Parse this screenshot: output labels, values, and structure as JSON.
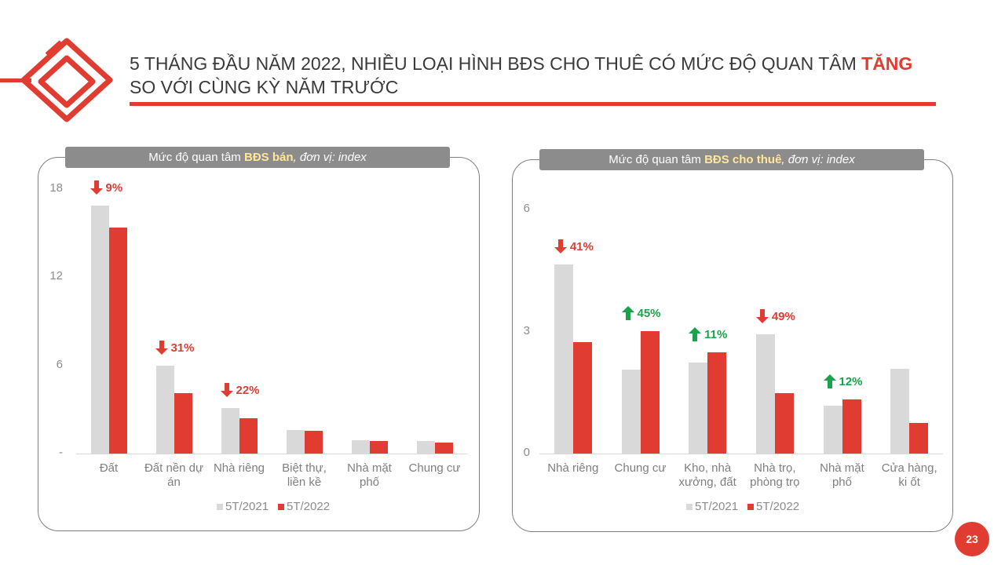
{
  "header": {
    "title": [
      "5 THÁNG ĐẦU NĂM 2022, NHIỀU LOẠI HÌNH BĐS CHO THUÊ CÓ MỨC ĐỘ QUAN TÂM",
      "TĂNG",
      "SO VỚI CÙNG KỲ NĂM TRƯỚC"
    ]
  },
  "page_number": "23",
  "chart_data": [
    {
      "type": "bar",
      "title": [
        "Mức độ quan tâm",
        "BĐS bán",
        ", đơn vị: index"
      ],
      "categories": [
        "Đất",
        "Đất nền dự án",
        "Nhà riêng",
        "Biệt thự, liền kề",
        "Nhà mặt phố",
        "Chung cư"
      ],
      "series": [
        {
          "name": "5T/2021",
          "color": "#d9d9d9",
          "values": [
            16.9,
            6.0,
            3.1,
            1.6,
            0.9,
            0.85
          ]
        },
        {
          "name": "5T/2022",
          "color": "#e03c31",
          "values": [
            15.4,
            4.1,
            2.4,
            1.55,
            0.85,
            0.75
          ]
        }
      ],
      "changes": [
        "9%",
        "31%",
        "22%",
        null,
        null,
        null
      ],
      "change_directions": [
        "down",
        "down",
        "down",
        null,
        null,
        null
      ],
      "up_color": "#1aa34a",
      "down_color": "#e03c31",
      "ylim": [
        0,
        18
      ],
      "yticks": [
        {
          "value": 0,
          "label": "-"
        },
        6,
        12,
        18
      ],
      "grid": false,
      "legend": "bottom"
    },
    {
      "type": "bar",
      "title": [
        "Mức độ quan tâm",
        "BĐS cho thuê",
        ", đơn vị: index"
      ],
      "categories": [
        "Nhà riêng",
        "Chung cư",
        "Kho, nhà xưởng, đất",
        "Nhà trọ, phòng trọ",
        "Nhà mặt phố",
        "Cửa hàng, ki ốt"
      ],
      "series": [
        {
          "name": "5T/2021",
          "color": "#d9d9d9",
          "values": [
            4.65,
            2.07,
            2.24,
            2.93,
            1.18,
            2.08
          ]
        },
        {
          "name": "5T/2022",
          "color": "#e03c31",
          "values": [
            2.74,
            3.01,
            2.49,
            1.49,
            1.33,
            0.75
          ]
        }
      ],
      "changes": [
        "41%",
        "45%",
        "11%",
        "49%",
        "12%",
        null
      ],
      "change_directions": [
        "down",
        "up",
        "up",
        "down",
        "up",
        null
      ],
      "up_color": "#1aa34a",
      "down_color": "#e03c31",
      "ylim": [
        0,
        6
      ],
      "yticks": [
        0,
        3,
        6
      ],
      "grid": false,
      "legend": "bottom"
    }
  ]
}
